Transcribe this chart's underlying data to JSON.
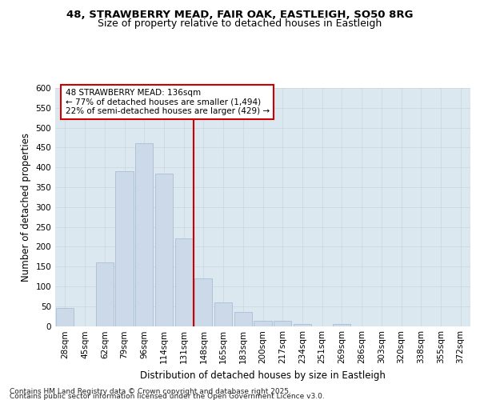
{
  "title_line1": "48, STRAWBERRY MEAD, FAIR OAK, EASTLEIGH, SO50 8RG",
  "title_line2": "Size of property relative to detached houses in Eastleigh",
  "xlabel": "Distribution of detached houses by size in Eastleigh",
  "ylabel": "Number of detached properties",
  "categories": [
    "28sqm",
    "45sqm",
    "62sqm",
    "79sqm",
    "96sqm",
    "114sqm",
    "131sqm",
    "148sqm",
    "165sqm",
    "183sqm",
    "200sqm",
    "217sqm",
    "234sqm",
    "251sqm",
    "269sqm",
    "286sqm",
    "303sqm",
    "320sqm",
    "338sqm",
    "355sqm",
    "372sqm"
  ],
  "values": [
    45,
    0,
    160,
    390,
    460,
    385,
    220,
    120,
    60,
    35,
    14,
    14,
    6,
    0,
    6,
    0,
    0,
    0,
    0,
    0,
    0
  ],
  "bar_color": "#ccd9e8",
  "bar_edgecolor": "#a8bfd4",
  "vline_x_index": 6,
  "vline_color": "#cc0000",
  "annotation_line1": "48 STRAWBERRY MEAD: 136sqm",
  "annotation_line2": "← 77% of detached houses are smaller (1,494)",
  "annotation_line3": "22% of semi-detached houses are larger (429) →",
  "annotation_box_color": "#cc0000",
  "annotation_bg": "#ffffff",
  "ylim": [
    0,
    600
  ],
  "yticks": [
    0,
    50,
    100,
    150,
    200,
    250,
    300,
    350,
    400,
    450,
    500,
    550,
    600
  ],
  "grid_color": "#c8d4e0",
  "bg_color": "#dce8f0",
  "footer_line1": "Contains HM Land Registry data © Crown copyright and database right 2025.",
  "footer_line2": "Contains public sector information licensed under the Open Government Licence v3.0.",
  "title_fontsize": 9.5,
  "subtitle_fontsize": 9,
  "axis_label_fontsize": 8.5,
  "tick_fontsize": 7.5,
  "annot_fontsize": 7.5,
  "footer_fontsize": 6.5
}
